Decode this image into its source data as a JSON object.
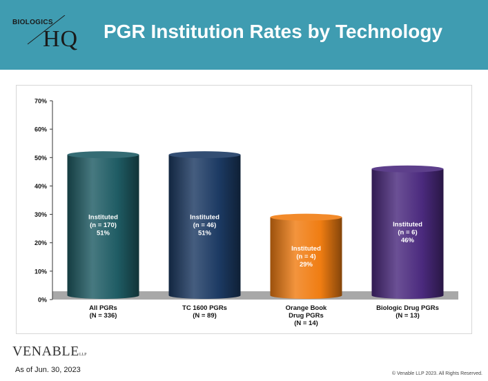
{
  "header": {
    "title": "PGR Institution Rates by Technology",
    "logo_top": "BIOLOGICS",
    "logo_bottom": "HQ",
    "background_color": "#3f9cb1"
  },
  "footer": {
    "brand": "VENABLE",
    "brand_suffix": "LLP",
    "as_of": "As of Jun. 30, 2023",
    "copyright": "© Venable LLP 2023. All Rights Reserved."
  },
  "chart_data": {
    "type": "bar",
    "title": "",
    "xlabel": "",
    "ylabel": "",
    "ylim": [
      0,
      70
    ],
    "yticks": [
      "0%",
      "10%",
      "20%",
      "30%",
      "40%",
      "50%",
      "60%",
      "70%"
    ],
    "grid": false,
    "categories": [
      [
        "All PGRs",
        "(N = 336)"
      ],
      [
        "TC 1600 PGRs",
        "(N = 89)"
      ],
      [
        "Orange Book",
        "Drug PGRs",
        "(N = 14)"
      ],
      [
        "Biologic Drug PGRs",
        "(N = 13)"
      ]
    ],
    "values": [
      51,
      51,
      29,
      46
    ],
    "bar_labels": [
      [
        "Instituted",
        "(n = 170)",
        "51%"
      ],
      [
        "Instituted",
        "(n = 46)",
        "51%"
      ],
      [
        "Instituted",
        "(n = 4)",
        "29%"
      ],
      [
        "Instituted",
        "(n = 6)",
        "46%"
      ]
    ],
    "colors": [
      "#1f5c64",
      "#1c3a63",
      "#f07d12",
      "#4b2a7e"
    ]
  }
}
